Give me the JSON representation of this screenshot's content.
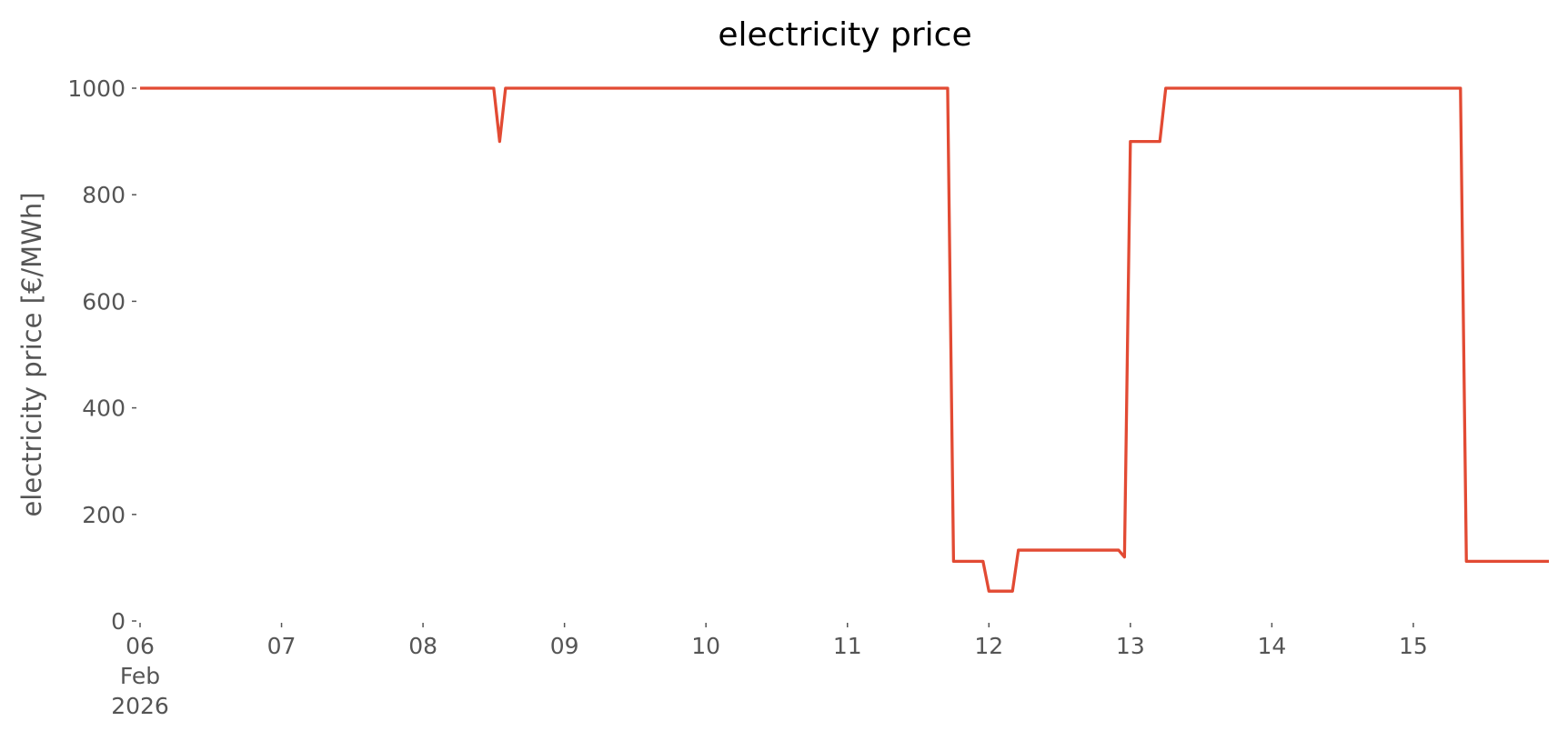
{
  "chart_data": {
    "type": "line",
    "title": "electricity price",
    "y_label": "electricity price [€/MWh]",
    "x": [
      "2026-02-06 00:00",
      "2026-02-08 12:00",
      "2026-02-08 13:00",
      "2026-02-08 14:00",
      "2026-02-11 17:00",
      "2026-02-11 18:00",
      "2026-02-11 23:00",
      "2026-02-12 00:00",
      "2026-02-12 04:00",
      "2026-02-12 05:00",
      "2026-02-12 22:00",
      "2026-02-12 23:00",
      "2026-02-13 00:00",
      "2026-02-13 05:00",
      "2026-02-13 06:00",
      "2026-02-15 08:00",
      "2026-02-15 09:00",
      "2026-02-15 23:00"
    ],
    "series": [
      {
        "name": "electricity price",
        "color": "#e24a33",
        "values": [
          1000,
          1000,
          900,
          1000,
          1000,
          112,
          112,
          56,
          56,
          133,
          133,
          120,
          900,
          900,
          1000,
          1000,
          112,
          112
        ]
      }
    ],
    "xlim": [
      "2026-02-06 00:00",
      "2026-02-15 23:00"
    ],
    "xticks": [
      {
        "value": "2026-02-06 00:00",
        "label": "06\nFeb\n2026"
      },
      {
        "value": "2026-02-07 00:00",
        "label": "07"
      },
      {
        "value": "2026-02-08 00:00",
        "label": "08"
      },
      {
        "value": "2026-02-09 00:00",
        "label": "09"
      },
      {
        "value": "2026-02-10 00:00",
        "label": "10"
      },
      {
        "value": "2026-02-11 00:00",
        "label": "11"
      },
      {
        "value": "2026-02-12 00:00",
        "label": "12"
      },
      {
        "value": "2026-02-13 00:00",
        "label": "13"
      },
      {
        "value": "2026-02-14 00:00",
        "label": "14"
      },
      {
        "value": "2026-02-15 00:00",
        "label": "15"
      }
    ],
    "ylim": [
      0,
      1000
    ],
    "yticks": [
      0,
      200,
      400,
      600,
      800,
      1000
    ],
    "grid": false
  }
}
